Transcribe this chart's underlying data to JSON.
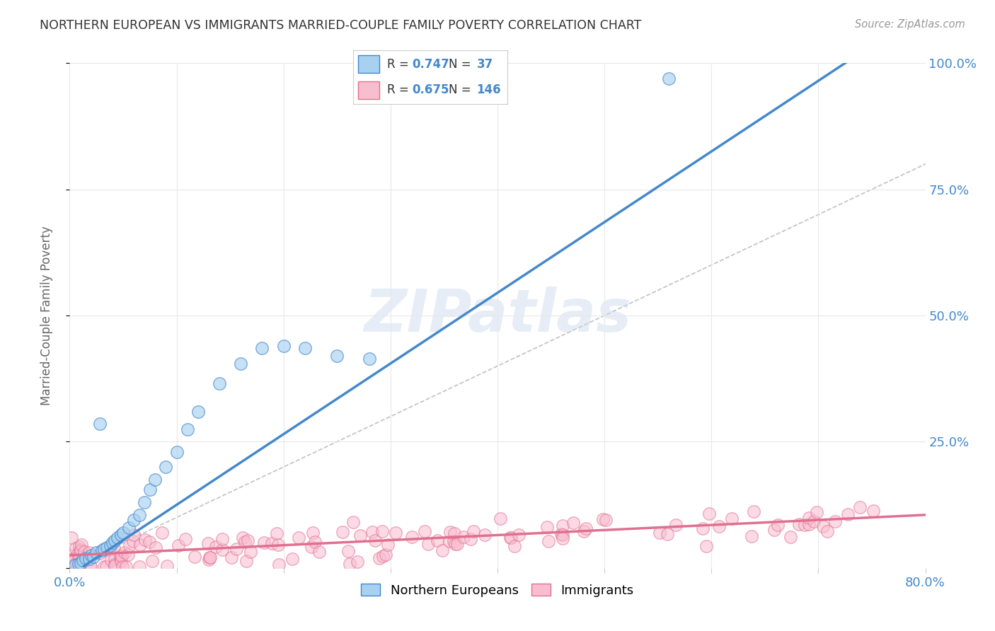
{
  "title": "NORTHERN EUROPEAN VS IMMIGRANTS MARRIED-COUPLE FAMILY POVERTY CORRELATION CHART",
  "source": "Source: ZipAtlas.com",
  "ylabel": "Married-Couple Family Poverty",
  "xlim": [
    0.0,
    0.8
  ],
  "ylim": [
    0.0,
    1.0
  ],
  "blue_R": 0.747,
  "blue_N": 37,
  "pink_R": 0.675,
  "pink_N": 146,
  "blue_color": "#A8D0F0",
  "pink_color": "#F9BDD0",
  "blue_line_color": "#4488CC",
  "pink_line_color": "#E07090",
  "blue_label": "Northern Europeans",
  "pink_label": "Immigrants",
  "watermark": "ZIPatlas",
  "blue_scatter_x": [
    0.005,
    0.008,
    0.01,
    0.012,
    0.015,
    0.018,
    0.02,
    0.022,
    0.025,
    0.028,
    0.03,
    0.032,
    0.035,
    0.038,
    0.04,
    0.042,
    0.045,
    0.048,
    0.05,
    0.055,
    0.06,
    0.065,
    0.07,
    0.075,
    0.08,
    0.09,
    0.1,
    0.11,
    0.12,
    0.14,
    0.16,
    0.18,
    0.2,
    0.22,
    0.25,
    0.28,
    0.56
  ],
  "blue_scatter_y": [
    0.005,
    0.008,
    0.01,
    0.015,
    0.02,
    0.018,
    0.025,
    0.022,
    0.03,
    0.285,
    0.035,
    0.038,
    0.04,
    0.045,
    0.05,
    0.055,
    0.06,
    0.065,
    0.07,
    0.08,
    0.095,
    0.105,
    0.13,
    0.155,
    0.175,
    0.2,
    0.23,
    0.275,
    0.31,
    0.365,
    0.405,
    0.435,
    0.44,
    0.435,
    0.42,
    0.415,
    0.97
  ],
  "bg_color": "#FFFFFF",
  "grid_color": "#E8E8E8",
  "title_color": "#333333",
  "axis_label_color": "#666666",
  "tick_color": "#4488CC"
}
